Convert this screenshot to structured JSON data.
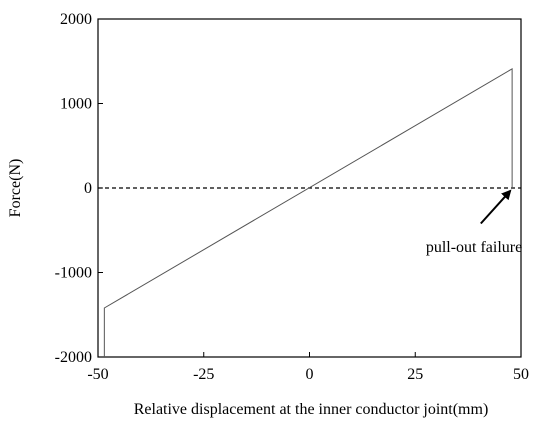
{
  "chart_data": {
    "type": "line",
    "title": "",
    "xlabel": "Relative displacement at the inner conductor joint(mm)",
    "ylabel": "Force(N)",
    "xlim": [
      -50,
      50
    ],
    "ylim": [
      -2000,
      2000
    ],
    "xticks": [
      -50,
      -25,
      0,
      25,
      50
    ],
    "yticks": [
      -2000,
      -1000,
      0,
      1000,
      2000
    ],
    "xtick_labels": [
      "-50",
      "-25",
      "0",
      "25",
      "50"
    ],
    "ytick_labels": [
      "-2000",
      "-1000",
      "0",
      "1000",
      "2000"
    ],
    "grid": false,
    "series": [
      {
        "color": "#555555",
        "style": "solid",
        "x": [
          -48.5,
          -48.5,
          47.9,
          47.9
        ],
        "y": [
          -2000,
          -1420,
          1410,
          0
        ]
      }
    ],
    "reference_lines": [
      {
        "y": 0,
        "style": "dashed",
        "color": "#000000"
      }
    ],
    "annotations": [
      {
        "text": "pull-out failure",
        "arrow_to": [
          47.9,
          0
        ],
        "arrow_from": [
          40.5,
          -420
        ],
        "text_at": [
          27.5,
          -760
        ]
      }
    ]
  }
}
